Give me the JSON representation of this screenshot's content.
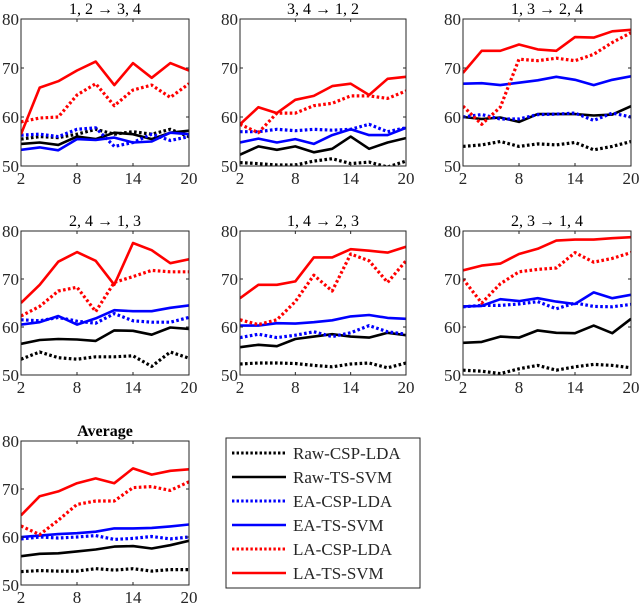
{
  "chart_data": {
    "type": "line",
    "figure": "small multiples",
    "x": [
      2,
      4,
      6,
      8,
      10,
      12,
      14,
      16,
      18,
      20
    ],
    "xticks": [
      2,
      8,
      14,
      20
    ],
    "yticks": [
      50,
      60,
      70,
      80
    ],
    "xlim": [
      2,
      20
    ],
    "ylim": [
      50,
      80
    ],
    "grid": false,
    "legend": {
      "placement": "bottom-center",
      "entries": [
        {
          "name": "Raw-CSP-LDA",
          "color": "#000000",
          "style": "dotted"
        },
        {
          "name": "Raw-TS-SVM",
          "color": "#000000",
          "style": "solid"
        },
        {
          "name": "EA-CSP-LDA",
          "color": "#0000ff",
          "style": "dotted"
        },
        {
          "name": "EA-TS-SVM",
          "color": "#0000ff",
          "style": "solid"
        },
        {
          "name": "LA-CSP-LDA",
          "color": "#ff0000",
          "style": "dotted"
        },
        {
          "name": "LA-TS-SVM",
          "color": "#ff0000",
          "style": "solid"
        }
      ]
    },
    "panels": [
      {
        "title": "1, 2 → 3, 4",
        "series": [
          {
            "name": "Raw-CSP-LDA",
            "values": [
              55.5,
              56.0,
              55.8,
              56.5,
              57.5,
              56.5,
              57.0,
              56.5,
              57.5,
              56.0
            ]
          },
          {
            "name": "Raw-TS-SVM",
            "values": [
              54.5,
              54.8,
              54.3,
              56.0,
              55.5,
              56.8,
              56.5,
              55.5,
              56.8,
              57.2
            ]
          },
          {
            "name": "EA-CSP-LDA",
            "values": [
              56.3,
              56.5,
              56.0,
              57.5,
              57.8,
              54.0,
              54.8,
              56.5,
              55.2,
              56.0
            ]
          },
          {
            "name": "EA-TS-SVM",
            "values": [
              53.3,
              53.8,
              53.2,
              55.5,
              55.3,
              55.8,
              54.8,
              55.0,
              56.8,
              56.5
            ]
          },
          {
            "name": "LA-CSP-LDA",
            "values": [
              59.0,
              59.8,
              60.0,
              64.5,
              66.8,
              62.3,
              65.5,
              66.5,
              64.0,
              66.8
            ]
          },
          {
            "name": "LA-TS-SVM",
            "values": [
              56.5,
              66.0,
              67.3,
              69.5,
              71.3,
              66.5,
              71.0,
              68.0,
              71.0,
              69.5
            ]
          }
        ]
      },
      {
        "title": "3, 4 → 1, 2",
        "series": [
          {
            "name": "Raw-CSP-LDA",
            "values": [
              50.7,
              50.5,
              50.2,
              50.2,
              51.0,
              51.5,
              50.5,
              50.8,
              49.8,
              51.0
            ]
          },
          {
            "name": "Raw-TS-SVM",
            "values": [
              52.3,
              54.0,
              53.3,
              54.0,
              52.8,
              53.5,
              56.0,
              53.5,
              54.8,
              55.7
            ]
          },
          {
            "name": "EA-CSP-LDA",
            "values": [
              57.0,
              57.0,
              57.5,
              57.2,
              57.5,
              57.3,
              57.5,
              58.5,
              57.0,
              57.8
            ]
          },
          {
            "name": "EA-TS-SVM",
            "values": [
              54.8,
              55.6,
              54.8,
              55.5,
              54.5,
              56.3,
              57.5,
              56.3,
              56.3,
              57.8
            ]
          },
          {
            "name": "LA-CSP-LDA",
            "values": [
              58.5,
              56.8,
              60.8,
              60.8,
              62.3,
              62.8,
              64.3,
              64.3,
              63.8,
              65.3
            ]
          },
          {
            "name": "LA-TS-SVM",
            "values": [
              58.5,
              62.0,
              60.8,
              63.5,
              64.3,
              66.3,
              66.8,
              64.5,
              67.8,
              68.2
            ]
          }
        ]
      },
      {
        "title": "1, 3 → 2, 4",
        "series": [
          {
            "name": "Raw-CSP-LDA",
            "values": [
              54.0,
              54.3,
              55.0,
              54.0,
              54.5,
              54.3,
              54.8,
              53.3,
              54.0,
              55.0
            ]
          },
          {
            "name": "Raw-TS-SVM",
            "values": [
              60.0,
              59.6,
              59.9,
              59.0,
              60.6,
              60.6,
              60.6,
              60.3,
              60.5,
              62.2
            ]
          },
          {
            "name": "EA-CSP-LDA",
            "values": [
              60.0,
              60.5,
              59.6,
              59.6,
              60.5,
              60.6,
              60.8,
              59.3,
              60.8,
              60.0
            ]
          },
          {
            "name": "EA-TS-SVM",
            "values": [
              66.8,
              66.9,
              66.5,
              67.0,
              67.5,
              68.2,
              67.6,
              66.5,
              67.6,
              68.3
            ]
          },
          {
            "name": "LA-CSP-LDA",
            "values": [
              62.2,
              58.5,
              62.0,
              71.8,
              71.5,
              72.0,
              71.5,
              72.8,
              75.2,
              77.2
            ]
          },
          {
            "name": "LA-TS-SVM",
            "values": [
              69.0,
              73.5,
              73.5,
              74.8,
              73.8,
              73.5,
              76.3,
              76.2,
              77.5,
              77.8
            ]
          }
        ]
      },
      {
        "title": "2, 4 → 1, 3",
        "series": [
          {
            "name": "Raw-CSP-LDA",
            "values": [
              53.3,
              54.8,
              53.6,
              53.3,
              53.8,
              53.8,
              54.0,
              51.8,
              54.8,
              53.5
            ]
          },
          {
            "name": "Raw-TS-SVM",
            "values": [
              56.5,
              57.3,
              57.5,
              57.4,
              57.1,
              59.3,
              59.2,
              58.4,
              59.9,
              59.6
            ]
          },
          {
            "name": "EA-CSP-LDA",
            "values": [
              61.5,
              61.3,
              62.0,
              61.2,
              60.8,
              62.8,
              61.3,
              61.0,
              61.0,
              62.0
            ]
          },
          {
            "name": "EA-TS-SVM",
            "values": [
              60.5,
              61.0,
              62.3,
              60.5,
              61.8,
              63.5,
              63.3,
              63.3,
              64.0,
              64.5
            ]
          },
          {
            "name": "LA-CSP-LDA",
            "values": [
              62.3,
              64.3,
              67.5,
              68.3,
              63.2,
              69.3,
              70.5,
              71.8,
              71.5,
              71.5
            ]
          },
          {
            "name": "LA-TS-SVM",
            "values": [
              65.0,
              68.8,
              73.6,
              75.6,
              73.8,
              68.8,
              77.5,
              76.0,
              73.3,
              74.1
            ]
          }
        ]
      },
      {
        "title": "1, 4 → 2, 3",
        "series": [
          {
            "name": "Raw-CSP-LDA",
            "values": [
              52.3,
              52.5,
              52.5,
              52.4,
              52.0,
              51.7,
              52.3,
              52.5,
              51.5,
              52.5
            ]
          },
          {
            "name": "Raw-TS-SVM",
            "values": [
              55.8,
              56.3,
              56.0,
              57.5,
              58.0,
              58.5,
              58.0,
              57.8,
              58.8,
              58.3
            ]
          },
          {
            "name": "EA-CSP-LDA",
            "values": [
              57.8,
              58.5,
              57.8,
              58.3,
              59.0,
              58.0,
              58.8,
              60.3,
              59.0,
              58.5
            ]
          },
          {
            "name": "EA-TS-SVM",
            "values": [
              60.3,
              60.3,
              60.8,
              60.7,
              61.0,
              61.4,
              62.2,
              62.5,
              61.9,
              61.7
            ]
          },
          {
            "name": "LA-CSP-LDA",
            "values": [
              61.5,
              60.5,
              61.5,
              65.3,
              70.8,
              67.5,
              75.2,
              73.8,
              69.3,
              73.8
            ]
          },
          {
            "name": "LA-TS-SVM",
            "values": [
              66.0,
              68.8,
              68.8,
              69.5,
              74.5,
              74.5,
              76.2,
              75.9,
              75.5,
              76.7
            ]
          }
        ]
      },
      {
        "title": "2, 3 → 1, 4",
        "series": [
          {
            "name": "Raw-CSP-LDA",
            "values": [
              51.0,
              50.8,
              50.3,
              51.3,
              52.0,
              51.0,
              51.7,
              52.2,
              52.0,
              51.5
            ]
          },
          {
            "name": "Raw-TS-SVM",
            "values": [
              56.7,
              56.9,
              58.0,
              57.8,
              59.3,
              58.8,
              58.7,
              60.3,
              58.7,
              61.7
            ]
          },
          {
            "name": "EA-CSP-LDA",
            "values": [
              64.2,
              64.5,
              64.5,
              64.8,
              65.3,
              63.8,
              65.0,
              64.3,
              64.2,
              64.7
            ]
          },
          {
            "name": "EA-TS-SVM",
            "values": [
              64.3,
              64.4,
              65.8,
              65.4,
              66.0,
              65.3,
              64.8,
              67.2,
              66.0,
              66.7
            ]
          },
          {
            "name": "LA-CSP-LDA",
            "values": [
              70.0,
              65.0,
              69.0,
              71.5,
              72.0,
              72.3,
              75.5,
              73.5,
              74.3,
              75.5
            ]
          },
          {
            "name": "LA-TS-SVM",
            "values": [
              71.8,
              72.8,
              73.2,
              75.2,
              76.3,
              78.0,
              78.2,
              78.2,
              78.5,
              78.7
            ]
          }
        ]
      },
      {
        "title": "Average",
        "series": [
          {
            "name": "Raw-CSP-LDA",
            "values": [
              52.8,
              53.0,
              52.9,
              52.9,
              53.4,
              53.1,
              53.4,
              52.9,
              53.2,
              53.2
            ]
          },
          {
            "name": "Raw-TS-SVM",
            "values": [
              56.0,
              56.5,
              56.6,
              57.0,
              57.4,
              58.0,
              58.1,
              57.6,
              58.3,
              59.2
            ]
          },
          {
            "name": "EA-CSP-LDA",
            "values": [
              59.6,
              60.0,
              59.8,
              60.0,
              60.3,
              59.5,
              59.7,
              60.1,
              59.6,
              60.0
            ]
          },
          {
            "name": "EA-TS-SVM",
            "values": [
              60.0,
              60.3,
              60.6,
              60.8,
              61.1,
              61.8,
              61.8,
              61.9,
              62.2,
              62.6
            ]
          },
          {
            "name": "LA-CSP-LDA",
            "values": [
              62.3,
              60.5,
              63.5,
              66.8,
              67.5,
              67.5,
              70.3,
              70.5,
              69.7,
              71.5
            ]
          },
          {
            "name": "LA-TS-SVM",
            "values": [
              64.5,
              68.5,
              69.5,
              71.2,
              72.2,
              71.2,
              74.3,
              73.0,
              73.8,
              74.1
            ]
          }
        ]
      }
    ]
  }
}
